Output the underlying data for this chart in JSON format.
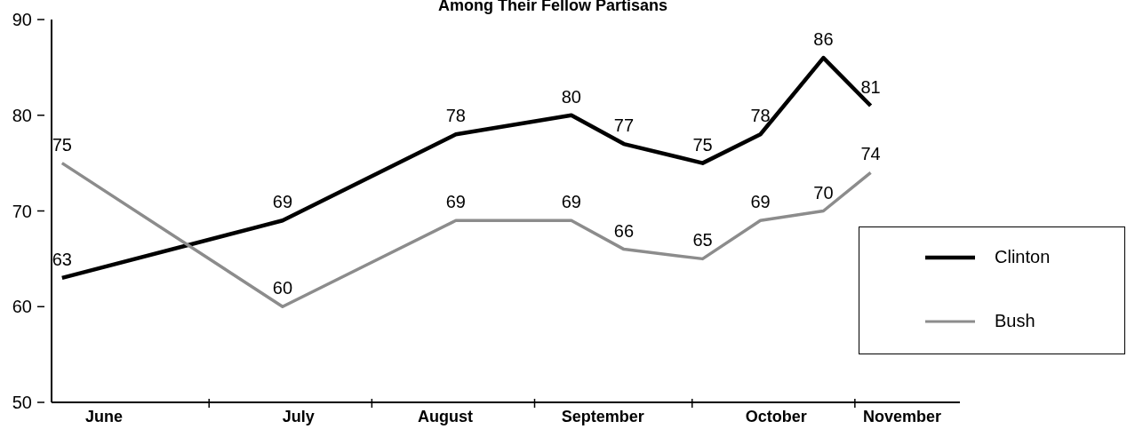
{
  "chart_data": {
    "type": "line",
    "title": "Among Their Fellow Partisans",
    "x": [
      "--06-03",
      "--07-15",
      "--08-17",
      "--09-08",
      "--09-18",
      "--10-03",
      "--10-14",
      "--10-26",
      "--11-04"
    ],
    "series": [
      {
        "name": "Clinton",
        "color": "#000000",
        "values": [
          63,
          69,
          78,
          80,
          77,
          75,
          78,
          86,
          81
        ]
      },
      {
        "name": "Bush",
        "color": "#8c8c8c",
        "values": [
          75,
          60,
          69,
          69,
          66,
          65,
          69,
          70,
          74
        ]
      }
    ],
    "xlim": [
      "--06-01",
      "--11-21"
    ],
    "xticks": [
      {
        "value": "--06-11",
        "label": "June"
      },
      {
        "value": "--07-01",
        "label": null
      },
      {
        "value": "--07-18",
        "label": "July"
      },
      {
        "value": "--08-01",
        "label": null
      },
      {
        "value": "--08-15",
        "label": "August"
      },
      {
        "value": "--09-01",
        "label": null
      },
      {
        "value": "--09-14",
        "label": "September"
      },
      {
        "value": "--10-01",
        "label": null
      },
      {
        "value": "--10-17",
        "label": "October"
      },
      {
        "value": "--11-01",
        "label": null
      },
      {
        "value": "--11-10",
        "label": "November"
      }
    ],
    "ylim": [
      50,
      90
    ],
    "yticks": [
      50,
      60,
      70,
      80,
      90
    ],
    "grid": false,
    "legend": "right",
    "data_labels": true,
    "marker": "none",
    "line_style": "solid"
  }
}
